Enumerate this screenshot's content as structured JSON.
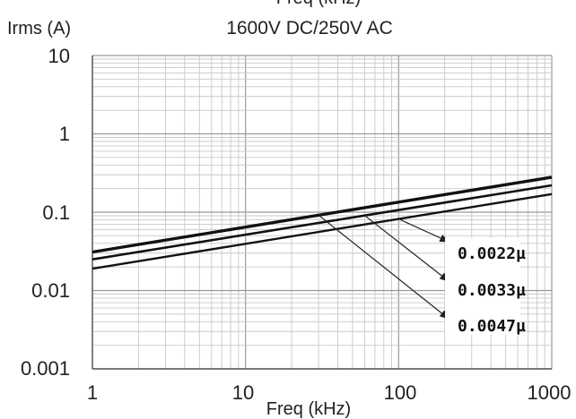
{
  "chart_data": {
    "type": "line",
    "top_title": "Freq (kHz)",
    "title": "1600V DC/250V AC",
    "ylabel": "Irms (A)",
    "xlabel": "Freq (kHz)",
    "x_scale": "log",
    "y_scale": "log",
    "xlim": [
      1,
      1000
    ],
    "ylim": [
      0.001,
      10
    ],
    "x_ticks": [
      "1",
      "10",
      "100",
      "1000"
    ],
    "y_ticks": [
      "10",
      "1",
      "0.1",
      "0.01",
      "0.001"
    ],
    "grid": true,
    "series": [
      {
        "name": "0.0022µ",
        "x": [
          1,
          1000
        ],
        "y": [
          0.019,
          0.17
        ]
      },
      {
        "name": "0.0033µ",
        "x": [
          1,
          1000
        ],
        "y": [
          0.025,
          0.22
        ]
      },
      {
        "name": "0.0047µ",
        "x": [
          1,
          1000
        ],
        "y": [
          0.031,
          0.28
        ]
      }
    ],
    "annotations": [
      {
        "text": "0.0022µ",
        "series": 0
      },
      {
        "text": "0.0033µ",
        "series": 1
      },
      {
        "text": "0.0047µ",
        "series": 2
      }
    ]
  }
}
